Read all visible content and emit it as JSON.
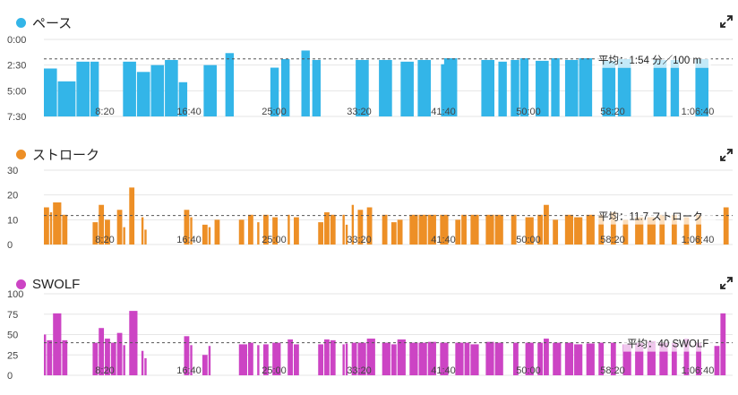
{
  "chart_data": [
    {
      "type": "bar",
      "id": "pace",
      "title": "ペース",
      "color": "#33b5e8",
      "yticks": [
        "0:00",
        "2:30",
        "5:00",
        "7:30"
      ],
      "xticks": [
        "8:20",
        "16:40",
        "25:00",
        "33:20",
        "41:40",
        "50:00",
        "58:20",
        "1:06:40"
      ],
      "inverted": true,
      "ylim_seconds": [
        0,
        450
      ],
      "xlim_seconds": [
        0,
        4440
      ],
      "average_seconds": 114,
      "average_label": "平均：1:54 分／100 m",
      "bars": [
        {
          "x": 0,
          "w": 90,
          "y": 170
        },
        {
          "x": 90,
          "w": 120,
          "y": 245
        },
        {
          "x": 210,
          "w": 90,
          "y": 130
        },
        {
          "x": 300,
          "w": 60,
          "y": 130
        },
        {
          "x": 510,
          "w": 90,
          "y": 130
        },
        {
          "x": 600,
          "w": 90,
          "y": 190
        },
        {
          "x": 690,
          "w": 90,
          "y": 150
        },
        {
          "x": 780,
          "w": 90,
          "y": 120
        },
        {
          "x": 870,
          "w": 60,
          "y": 250
        },
        {
          "x": 1030,
          "w": 90,
          "y": 150
        },
        {
          "x": 1170,
          "w": 60,
          "y": 80
        },
        {
          "x": 1460,
          "w": 60,
          "y": 165
        },
        {
          "x": 1530,
          "w": 60,
          "y": 115
        },
        {
          "x": 1660,
          "w": 60,
          "y": 65
        },
        {
          "x": 1730,
          "w": 60,
          "y": 120
        },
        {
          "x": 2010,
          "w": 90,
          "y": 120
        },
        {
          "x": 2160,
          "w": 90,
          "y": 120
        },
        {
          "x": 2300,
          "w": 90,
          "y": 130
        },
        {
          "x": 2410,
          "w": 90,
          "y": 120
        },
        {
          "x": 2560,
          "w": 30,
          "y": 145
        },
        {
          "x": 2580,
          "w": 90,
          "y": 110
        },
        {
          "x": 2820,
          "w": 90,
          "y": 120
        },
        {
          "x": 2930,
          "w": 60,
          "y": 130
        },
        {
          "x": 3010,
          "w": 60,
          "y": 120
        },
        {
          "x": 3070,
          "w": 60,
          "y": 110
        },
        {
          "x": 3170,
          "w": 90,
          "y": 125
        },
        {
          "x": 3270,
          "w": 60,
          "y": 110
        },
        {
          "x": 3360,
          "w": 90,
          "y": 120
        },
        {
          "x": 3450,
          "w": 90,
          "y": 110
        },
        {
          "x": 3600,
          "w": 90,
          "y": 125
        },
        {
          "x": 3700,
          "w": 90,
          "y": 115
        },
        {
          "x": 3930,
          "w": 90,
          "y": 120
        },
        {
          "x": 4040,
          "w": 60,
          "y": 120
        },
        {
          "x": 4200,
          "w": 90,
          "y": 115
        }
      ]
    },
    {
      "type": "bar",
      "id": "stroke",
      "title": "ストローク",
      "color": "#ed8f26",
      "yticks": [
        "0",
        "10",
        "20",
        "30"
      ],
      "xticks": [
        "8:20",
        "16:40",
        "25:00",
        "33:20",
        "41:40",
        "50:00",
        "58:20",
        "1:06:40"
      ],
      "ylim": [
        0,
        30
      ],
      "average": 11.7,
      "average_label": "平均：11.7 ストローク",
      "bars": [
        {
          "x": 0,
          "w": 60,
          "y": 15
        },
        {
          "x": 60,
          "w": 30,
          "y": 13
        },
        {
          "x": 90,
          "w": 90,
          "y": 17
        },
        {
          "x": 180,
          "w": 60,
          "y": 12
        },
        {
          "x": 480,
          "w": 60,
          "y": 9
        },
        {
          "x": 540,
          "w": 60,
          "y": 16
        },
        {
          "x": 600,
          "w": 60,
          "y": 10
        },
        {
          "x": 720,
          "w": 60,
          "y": 14
        },
        {
          "x": 780,
          "w": 30,
          "y": 7
        },
        {
          "x": 840,
          "w": 60,
          "y": 23
        },
        {
          "x": 960,
          "w": 30,
          "y": 11
        },
        {
          "x": 990,
          "w": 30,
          "y": 6
        },
        {
          "x": 1380,
          "w": 60,
          "y": 14
        },
        {
          "x": 1440,
          "w": 30,
          "y": 11
        },
        {
          "x": 1560,
          "w": 60,
          "y": 8
        },
        {
          "x": 1620,
          "w": 30,
          "y": 7
        },
        {
          "x": 1680,
          "w": 60,
          "y": 10
        },
        {
          "x": 1920,
          "w": 60,
          "y": 10
        },
        {
          "x": 2010,
          "w": 60,
          "y": 12
        },
        {
          "x": 2100,
          "w": 30,
          "y": 9
        },
        {
          "x": 2160,
          "w": 60,
          "y": 12
        },
        {
          "x": 2250,
          "w": 60,
          "y": 11
        },
        {
          "x": 2400,
          "w": 30,
          "y": 12
        },
        {
          "x": 2460,
          "w": 60,
          "y": 11
        },
        {
          "x": 2700,
          "w": 60,
          "y": 9
        },
        {
          "x": 2760,
          "w": 60,
          "y": 13
        },
        {
          "x": 2820,
          "w": 60,
          "y": 12
        },
        {
          "x": 2940,
          "w": 30,
          "y": 12
        },
        {
          "x": 2970,
          "w": 30,
          "y": 8
        },
        {
          "x": 3030,
          "w": 30,
          "y": 16
        },
        {
          "x": 3090,
          "w": 60,
          "y": 14
        },
        {
          "x": 3180,
          "w": 60,
          "y": 15
        },
        {
          "x": 3330,
          "w": 60,
          "y": 12
        },
        {
          "x": 3420,
          "w": 60,
          "y": 9
        },
        {
          "x": 3480,
          "w": 60,
          "y": 10
        },
        {
          "x": 3600,
          "w": 90,
          "y": 12
        },
        {
          "x": 3690,
          "w": 90,
          "y": 12
        },
        {
          "x": 3780,
          "w": 90,
          "y": 12
        },
        {
          "x": 3900,
          "w": 90,
          "y": 12
        },
        {
          "x": 4050,
          "w": 60,
          "y": 10
        },
        {
          "x": 4110,
          "w": 60,
          "y": 12
        },
        {
          "x": 4200,
          "w": 90,
          "y": 12
        },
        {
          "x": 4350,
          "w": 90,
          "y": 12
        },
        {
          "x": 4440,
          "w": 90,
          "y": 12
        },
        {
          "x": 4600,
          "w": 60,
          "y": 12
        },
        {
          "x": 4740,
          "w": 90,
          "y": 11
        },
        {
          "x": 4860,
          "w": 60,
          "y": 12
        },
        {
          "x": 4920,
          "w": 60,
          "y": 16
        },
        {
          "x": 5010,
          "w": 60,
          "y": 10
        },
        {
          "x": 5130,
          "w": 90,
          "y": 12
        },
        {
          "x": 5220,
          "w": 90,
          "y": 11
        },
        {
          "x": 5340,
          "w": 90,
          "y": 12
        },
        {
          "x": 5460,
          "w": 60,
          "y": 12
        },
        {
          "x": 5580,
          "w": 60,
          "y": 13
        },
        {
          "x": 5700,
          "w": 60,
          "y": 10
        },
        {
          "x": 5820,
          "w": 90,
          "y": 11
        },
        {
          "x": 5940,
          "w": 90,
          "y": 11
        },
        {
          "x": 6060,
          "w": 60,
          "y": 12
        },
        {
          "x": 6180,
          "w": 60,
          "y": 12
        },
        {
          "x": 6300,
          "w": 60,
          "y": 11
        },
        {
          "x": 6420,
          "w": 60,
          "y": 12
        },
        {
          "x": 6690,
          "w": 60,
          "y": 15
        }
      ]
    },
    {
      "type": "bar",
      "id": "swolf",
      "title": "SWOLF",
      "color": "#cc44c4",
      "yticks": [
        "0",
        "25",
        "50",
        "75",
        "100"
      ],
      "xticks": [
        "8:20",
        "16:40",
        "25:00",
        "33:20",
        "41:40",
        "50:00",
        "58:20",
        "1:06:40"
      ],
      "ylim": [
        0,
        100
      ],
      "average": 40,
      "average_label": "平均：40 SWOLF",
      "bars": [
        {
          "x": 0,
          "w": 30,
          "y": 50
        },
        {
          "x": 30,
          "w": 60,
          "y": 43
        },
        {
          "x": 90,
          "w": 90,
          "y": 76
        },
        {
          "x": 180,
          "w": 60,
          "y": 43
        },
        {
          "x": 480,
          "w": 60,
          "y": 40
        },
        {
          "x": 540,
          "w": 60,
          "y": 58
        },
        {
          "x": 600,
          "w": 60,
          "y": 45
        },
        {
          "x": 660,
          "w": 60,
          "y": 40
        },
        {
          "x": 720,
          "w": 60,
          "y": 52
        },
        {
          "x": 780,
          "w": 30,
          "y": 37
        },
        {
          "x": 840,
          "w": 90,
          "y": 79
        },
        {
          "x": 960,
          "w": 30,
          "y": 30
        },
        {
          "x": 990,
          "w": 30,
          "y": 21
        },
        {
          "x": 1380,
          "w": 60,
          "y": 48
        },
        {
          "x": 1440,
          "w": 30,
          "y": 37
        },
        {
          "x": 1560,
          "w": 60,
          "y": 25
        },
        {
          "x": 1620,
          "w": 30,
          "y": 36
        },
        {
          "x": 1920,
          "w": 90,
          "y": 38
        },
        {
          "x": 2010,
          "w": 60,
          "y": 40
        },
        {
          "x": 2100,
          "w": 30,
          "y": 37
        },
        {
          "x": 2160,
          "w": 60,
          "y": 38
        },
        {
          "x": 2250,
          "w": 90,
          "y": 40
        },
        {
          "x": 2400,
          "w": 60,
          "y": 44
        },
        {
          "x": 2460,
          "w": 60,
          "y": 38
        },
        {
          "x": 2700,
          "w": 60,
          "y": 38
        },
        {
          "x": 2760,
          "w": 60,
          "y": 44
        },
        {
          "x": 2820,
          "w": 60,
          "y": 43
        },
        {
          "x": 2940,
          "w": 30,
          "y": 38
        },
        {
          "x": 2970,
          "w": 30,
          "y": 39
        },
        {
          "x": 3030,
          "w": 60,
          "y": 40
        },
        {
          "x": 3090,
          "w": 90,
          "y": 40
        },
        {
          "x": 3180,
          "w": 90,
          "y": 45
        },
        {
          "x": 3330,
          "w": 90,
          "y": 40
        },
        {
          "x": 3420,
          "w": 60,
          "y": 38
        },
        {
          "x": 3480,
          "w": 90,
          "y": 44
        },
        {
          "x": 3600,
          "w": 90,
          "y": 40
        },
        {
          "x": 3690,
          "w": 90,
          "y": 40
        },
        {
          "x": 3780,
          "w": 90,
          "y": 41
        },
        {
          "x": 3900,
          "w": 90,
          "y": 40
        },
        {
          "x": 4050,
          "w": 90,
          "y": 40
        },
        {
          "x": 4140,
          "w": 60,
          "y": 40
        },
        {
          "x": 4200,
          "w": 90,
          "y": 38
        },
        {
          "x": 4350,
          "w": 90,
          "y": 41
        },
        {
          "x": 4440,
          "w": 90,
          "y": 40
        },
        {
          "x": 4620,
          "w": 60,
          "y": 40
        },
        {
          "x": 4740,
          "w": 90,
          "y": 40
        },
        {
          "x": 4860,
          "w": 60,
          "y": 40
        },
        {
          "x": 4920,
          "w": 60,
          "y": 45
        },
        {
          "x": 5010,
          "w": 90,
          "y": 40
        },
        {
          "x": 5130,
          "w": 90,
          "y": 40
        },
        {
          "x": 5220,
          "w": 90,
          "y": 38
        },
        {
          "x": 5340,
          "w": 90,
          "y": 39
        },
        {
          "x": 5460,
          "w": 60,
          "y": 40
        },
        {
          "x": 5580,
          "w": 60,
          "y": 40
        },
        {
          "x": 5700,
          "w": 90,
          "y": 38
        },
        {
          "x": 5820,
          "w": 90,
          "y": 40
        },
        {
          "x": 5940,
          "w": 90,
          "y": 42
        },
        {
          "x": 6060,
          "w": 90,
          "y": 40
        },
        {
          "x": 6180,
          "w": 60,
          "y": 40
        },
        {
          "x": 6300,
          "w": 60,
          "y": 45
        },
        {
          "x": 6420,
          "w": 60,
          "y": 40
        },
        {
          "x": 6600,
          "w": 60,
          "y": 36
        },
        {
          "x": 6660,
          "w": 60,
          "y": 76
        }
      ]
    }
  ]
}
